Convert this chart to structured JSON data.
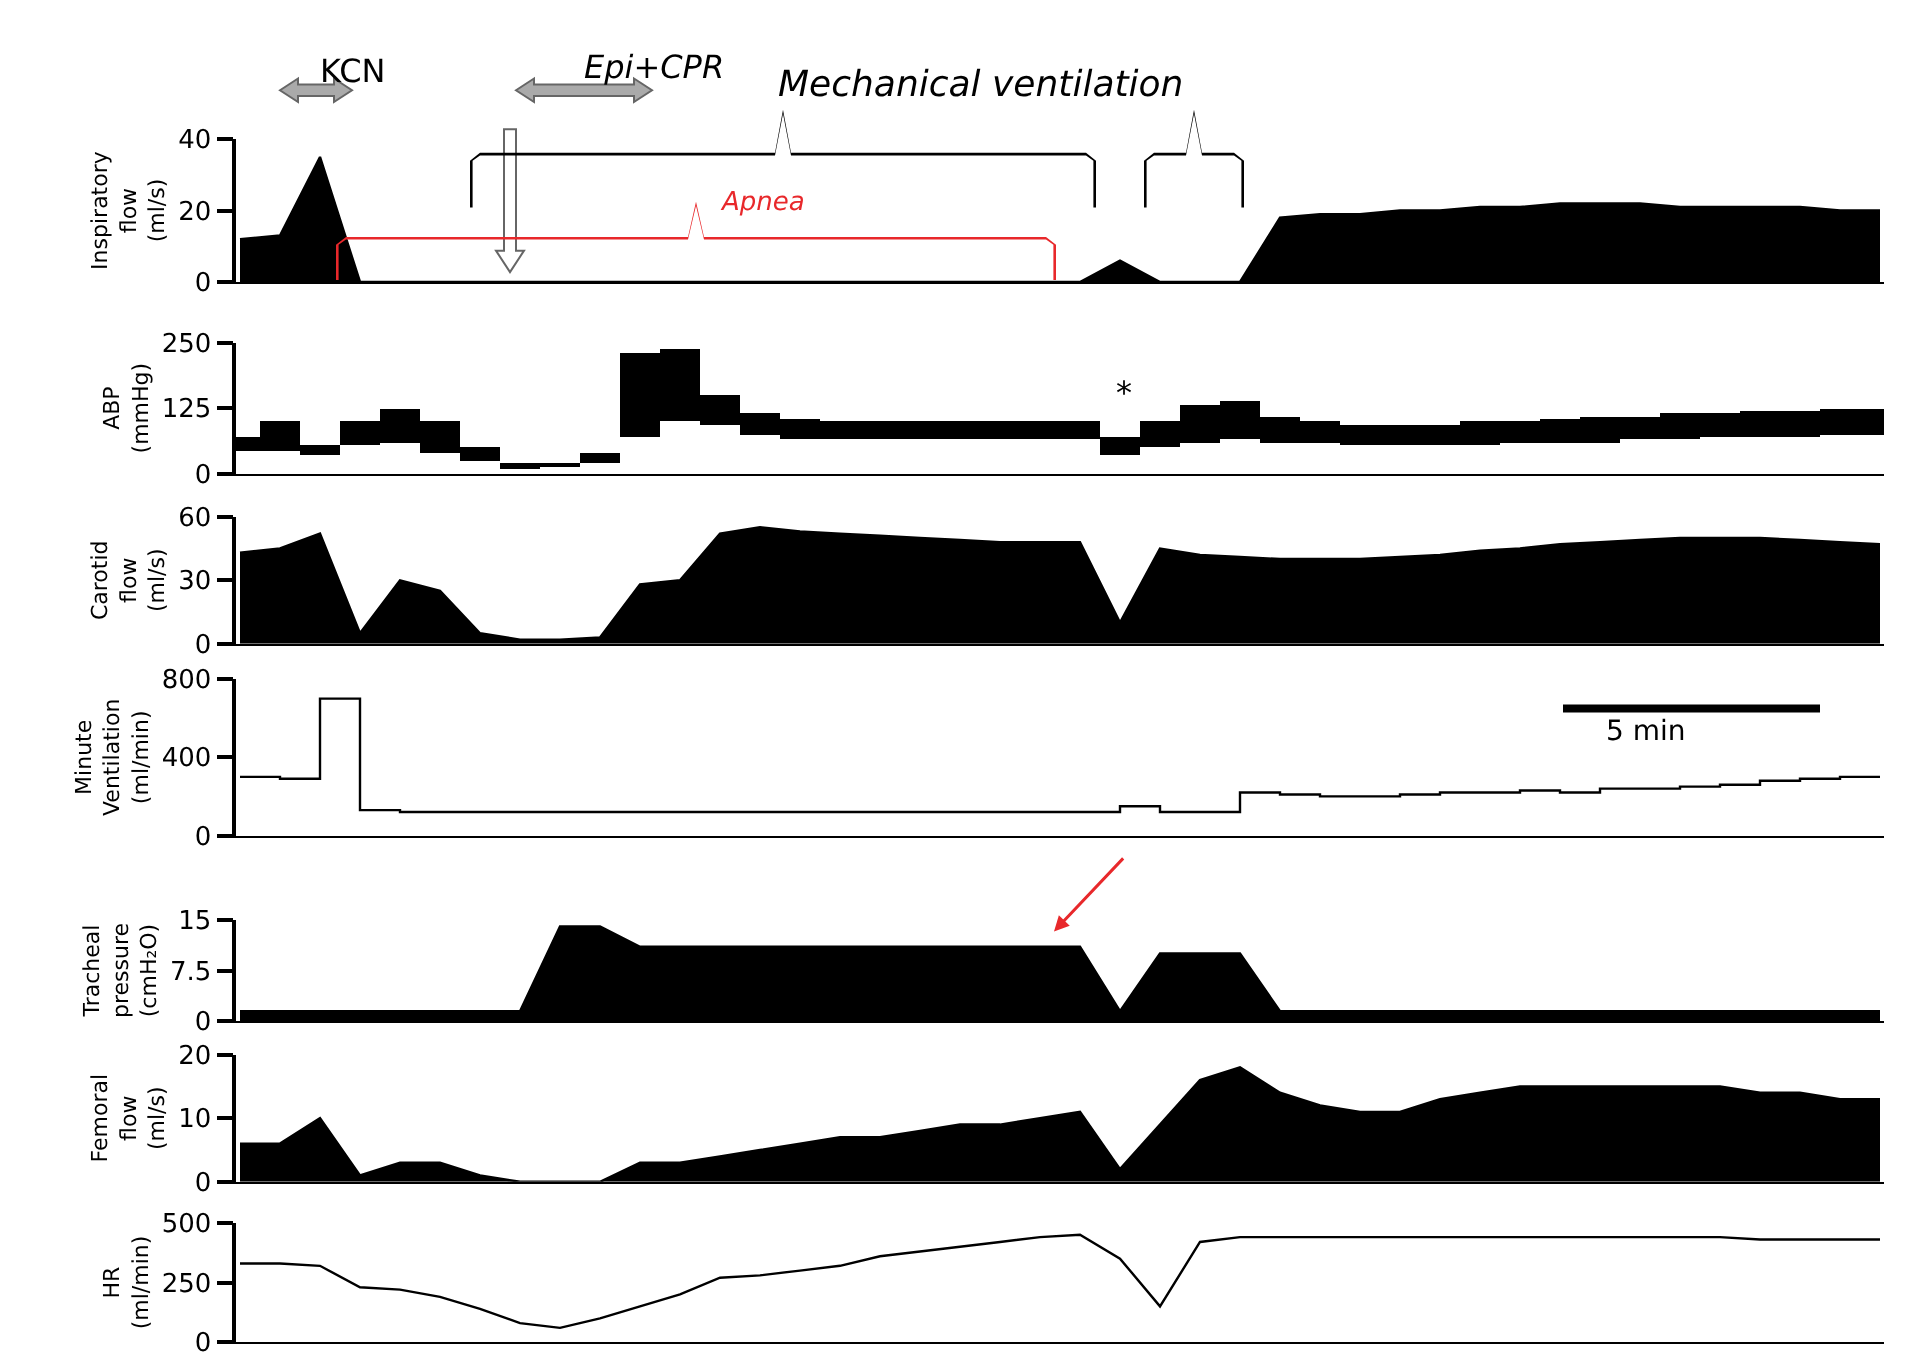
{
  "chart_data": [
    {
      "type": "area",
      "ylabel": "Inspiratory\nflow\n(ml/s)",
      "categories": [
        null,
        null,
        null,
        null,
        null,
        null,
        null,
        null,
        null,
        null,
        null,
        null,
        null,
        null,
        null,
        null,
        null,
        null,
        null,
        null,
        null,
        null,
        null,
        null,
        null,
        null,
        null,
        null,
        null,
        null,
        null,
        null,
        null,
        null,
        null,
        null,
        null,
        null,
        null,
        null,
        null,
        null
      ],
      "ylim": [
        0,
        40
      ],
      "yticks": [
        0,
        20,
        40
      ],
      "tick_labels": "y",
      "series": [
        {
          "color": "#000000",
          "values": [
            12,
            13,
            35,
            0,
            0,
            0,
            0,
            0,
            0,
            0,
            0,
            0,
            0,
            0,
            0,
            0,
            0,
            0,
            0,
            0,
            0,
            0,
            6,
            0,
            0,
            0,
            18,
            19,
            19,
            20,
            20,
            21,
            21,
            22,
            22,
            22,
            21,
            21,
            21,
            21,
            20,
            20
          ]
        }
      ],
      "annotations": [
        "KCN",
        "Epi+CPR",
        "Mechanical ventilation",
        "Apnea"
      ]
    },
    {
      "type": "bar",
      "ylabel": "ABP\n(mmHg)",
      "categories": [
        null,
        null,
        null,
        null,
        null,
        null,
        null,
        null,
        null,
        null,
        null,
        null,
        null,
        null,
        null,
        null,
        null,
        null,
        null,
        null,
        null,
        null,
        null,
        null,
        null,
        null,
        null,
        null,
        null,
        null,
        null,
        null,
        null,
        null,
        null,
        null,
        null,
        null,
        null,
        null,
        null,
        null
      ],
      "ylim": [
        0,
        250
      ],
      "yticks": [
        0,
        125,
        250
      ],
      "tick_labels": "y",
      "series": [
        {
          "color": "#000000",
          "base": [
            45,
            45,
            35,
            55,
            60,
            40,
            25,
            10,
            15,
            20,
            70,
            100,
            95,
            75,
            65,
            65,
            65,
            65,
            65,
            65,
            65,
            65,
            35,
            50,
            60,
            65,
            60,
            60,
            55,
            55,
            55,
            55,
            60,
            60,
            60,
            65,
            65,
            70,
            70,
            70,
            75,
            75
          ],
          "values": [
            25,
            55,
            20,
            45,
            65,
            60,
            25,
            10,
            5,
            20,
            160,
            140,
            55,
            40,
            40,
            35,
            35,
            35,
            35,
            35,
            35,
            35,
            35,
            50,
            70,
            75,
            50,
            40,
            40,
            40,
            40,
            45,
            40,
            45,
            50,
            45,
            50,
            45,
            50,
            50,
            50,
            50
          ]
        }
      ],
      "annotations": [
        "*"
      ]
    },
    {
      "type": "area",
      "ylabel": "Carotid\nflow\n(ml/s)",
      "categories": [
        null,
        null,
        null,
        null,
        null,
        null,
        null,
        null,
        null,
        null,
        null,
        null,
        null,
        null,
        null,
        null,
        null,
        null,
        null,
        null,
        null,
        null,
        null,
        null,
        null,
        null,
        null,
        null,
        null,
        null,
        null,
        null,
        null,
        null,
        null,
        null,
        null,
        null,
        null,
        null,
        null,
        null
      ],
      "ylim": [
        0,
        60
      ],
      "yticks": [
        0,
        30,
        60
      ],
      "tick_labels": "y",
      "series": [
        {
          "color": "#000000",
          "values": [
            43,
            45,
            52,
            5,
            30,
            25,
            5,
            2,
            2,
            3,
            28,
            30,
            52,
            55,
            53,
            52,
            51,
            50,
            49,
            48,
            48,
            48,
            10,
            45,
            42,
            41,
            40,
            40,
            40,
            41,
            42,
            44,
            45,
            47,
            48,
            49,
            50,
            50,
            50,
            49,
            48,
            47
          ]
        }
      ]
    },
    {
      "type": "step",
      "ylabel": "Minute\nVentilation\n(ml/min)",
      "categories": [
        null,
        null,
        null,
        null,
        null,
        null,
        null,
        null,
        null,
        null,
        null,
        null,
        null,
        null,
        null,
        null,
        null,
        null,
        null,
        null,
        null,
        null,
        null,
        null,
        null,
        null,
        null,
        null,
        null,
        null,
        null,
        null,
        null,
        null,
        null,
        null,
        null,
        null,
        null,
        null,
        null,
        null
      ],
      "ylim": [
        0,
        800
      ],
      "yticks": [
        0,
        400,
        800
      ],
      "tick_labels": "y",
      "series": [
        {
          "color": "#000000",
          "values": [
            300,
            290,
            700,
            130,
            120,
            120,
            120,
            120,
            120,
            120,
            120,
            120,
            120,
            120,
            120,
            120,
            120,
            120,
            120,
            120,
            120,
            120,
            150,
            120,
            120,
            220,
            210,
            200,
            200,
            210,
            220,
            220,
            230,
            220,
            240,
            240,
            250,
            260,
            280,
            290,
            300,
            300
          ]
        }
      ],
      "annotations": [
        "5 min"
      ]
    },
    {
      "type": "area",
      "ylabel": "Tracheal\npressure\n(cmH₂O)",
      "categories": [
        null,
        null,
        null,
        null,
        null,
        null,
        null,
        null,
        null,
        null,
        null,
        null,
        null,
        null,
        null,
        null,
        null,
        null,
        null,
        null,
        null,
        null,
        null,
        null,
        null,
        null,
        null,
        null,
        null,
        null,
        null,
        null,
        null,
        null,
        null,
        null,
        null,
        null,
        null,
        null,
        null,
        null
      ],
      "ylim": [
        0,
        15
      ],
      "yticks": [
        0,
        7.5,
        15
      ],
      "tick_labels": "y",
      "series": [
        {
          "color": "#000000",
          "values": [
            1.5,
            1.5,
            1.5,
            1.5,
            1.5,
            1.5,
            1.5,
            1.5,
            14,
            14,
            11,
            11,
            11,
            11,
            11,
            11,
            11,
            11,
            11,
            11,
            11,
            11,
            1.5,
            10,
            10,
            10,
            1.5,
            1.5,
            1.5,
            1.5,
            1.5,
            1.5,
            1.5,
            1.5,
            1.5,
            1.5,
            1.5,
            1.5,
            1.5,
            1.5,
            1.5,
            1.5
          ]
        }
      ]
    },
    {
      "type": "area",
      "ylabel": "Femoral\nflow\n(ml/s)",
      "categories": [
        null,
        null,
        null,
        null,
        null,
        null,
        null,
        null,
        null,
        null,
        null,
        null,
        null,
        null,
        null,
        null,
        null,
        null,
        null,
        null,
        null,
        null,
        null,
        null,
        null,
        null,
        null,
        null,
        null,
        null,
        null,
        null,
        null,
        null,
        null,
        null,
        null,
        null,
        null,
        null,
        null,
        null
      ],
      "ylim": [
        0,
        20
      ],
      "yticks": [
        0,
        10,
        20
      ],
      "tick_labels": "y",
      "series": [
        {
          "color": "#000000",
          "values": [
            6,
            6,
            10,
            1,
            3,
            3,
            1,
            0,
            0,
            0,
            3,
            3,
            4,
            5,
            6,
            7,
            7,
            8,
            9,
            9,
            10,
            11,
            2,
            9,
            16,
            18,
            14,
            12,
            11,
            11,
            13,
            14,
            15,
            15,
            15,
            15,
            15,
            15,
            14,
            14,
            13,
            13
          ]
        }
      ]
    },
    {
      "type": "line",
      "ylabel": "HR\n(ml/min)",
      "categories": [
        null,
        null,
        null,
        null,
        null,
        null,
        null,
        null,
        null,
        null,
        null,
        null,
        null,
        null,
        null,
        null,
        null,
        null,
        null,
        null,
        null,
        null,
        null,
        null,
        null,
        null,
        null,
        null,
        null,
        null,
        null,
        null,
        null,
        null,
        null,
        null,
        null,
        null,
        null,
        null,
        null,
        null
      ],
      "ylim": [
        0,
        500
      ],
      "yticks": [
        0,
        250,
        500
      ],
      "tick_labels": "y",
      "series": [
        {
          "color": "#000000",
          "values": [
            330,
            330,
            320,
            230,
            220,
            190,
            140,
            80,
            60,
            100,
            150,
            200,
            270,
            280,
            300,
            320,
            360,
            380,
            400,
            420,
            440,
            450,
            350,
            150,
            420,
            440,
            440,
            440,
            440,
            440,
            440,
            440,
            440,
            440,
            440,
            440,
            440,
            440,
            430,
            430,
            430,
            430
          ]
        }
      ]
    }
  ]
}
